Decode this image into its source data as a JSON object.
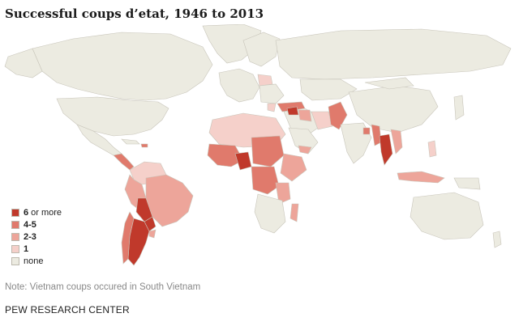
{
  "title": "Successful coups d’etat, 1946 to 2013",
  "note": "Note: Vietnam coups occured in South Vietnam",
  "source": "PEW RESEARCH CENTER",
  "colors": {
    "ocean": "#ffffff",
    "land": "#ecebe1",
    "border": "#c8c5ba",
    "c6plus": "#c0392b",
    "c4to5": "#e07a6c",
    "c2to3": "#eda59a",
    "c1": "#f5d0ca",
    "none": "#ecebe1"
  },
  "legend": [
    {
      "label": "6",
      "suffix": "or more",
      "color": "#c0392b"
    },
    {
      "label": "4-5",
      "suffix": "",
      "color": "#e07a6c"
    },
    {
      "label": "2-3",
      "suffix": "",
      "color": "#eda59a"
    },
    {
      "label": "1",
      "suffix": "",
      "color": "#f5d0ca"
    },
    {
      "label": "none",
      "suffix": "",
      "color": "#ecebe1"
    }
  ]
}
